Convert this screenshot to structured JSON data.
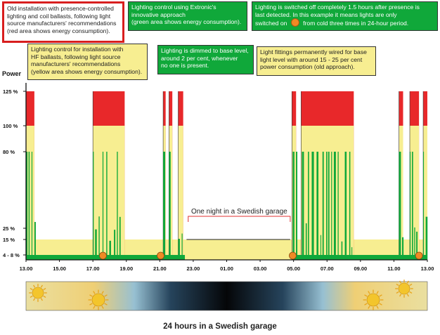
{
  "chart_data": {
    "type": "area",
    "title": "24 hours in a Swedish garage",
    "ylabel": "Power",
    "ylim": [
      0,
      140
    ],
    "x_ticks": [
      "13.00",
      "15.00",
      "17.00",
      "19.00",
      "21.00",
      "23.00",
      "01.00",
      "03.00",
      "05.00",
      "07.00",
      "09.00",
      "11.00",
      "13.00"
    ],
    "y_ticks": [
      {
        "label": "125 %",
        "value": 125
      },
      {
        "label": "100 %",
        "value": 100
      },
      {
        "label": "80 %",
        "value": 80
      },
      {
        "label": "25 %",
        "value": 25
      },
      {
        "label": "15 %",
        "value": 15
      },
      {
        "label": "4 - 8 %",
        "value": 6
      }
    ],
    "series": [
      {
        "name": "Old installation with presence-controlled lighting and coil ballasts",
        "color": "#e8282a",
        "level": 125,
        "on_periods": [
          [
            13.0,
            13.5
          ],
          [
            17.0,
            18.9
          ],
          [
            21.2,
            21.35
          ],
          [
            21.55,
            21.75
          ],
          [
            22.1,
            22.4
          ],
          [
            4.9,
            5.15
          ],
          [
            5.45,
            8.6
          ],
          [
            11.3,
            11.55
          ],
          [
            11.95,
            12.5
          ],
          [
            12.75,
            13.0
          ]
        ]
      },
      {
        "name": "Lighting control for installation with HF ballasts",
        "color": "#f7ee91",
        "base": 15,
        "level": 100,
        "on_periods": [
          [
            13.0,
            13.5
          ],
          [
            17.0,
            18.9
          ],
          [
            21.2,
            21.35
          ],
          [
            21.55,
            21.75
          ],
          [
            22.1,
            22.4
          ],
          [
            4.9,
            5.15
          ],
          [
            5.45,
            8.6
          ],
          [
            11.3,
            11.55
          ],
          [
            11.95,
            12.5
          ],
          [
            12.75,
            13.0
          ]
        ]
      },
      {
        "name": "Lighting control using Extronic's innovative approach",
        "color": "#10a83a",
        "base": 6,
        "level": 80
      }
    ],
    "markers": [
      17.6,
      21.05,
      4.95,
      12.5
    ],
    "marker_color": "#f08a24"
  },
  "annotations": {
    "red_box": [
      "Old installation with presence-controlled",
      "lighting and coil ballasts, following light",
      "source manufacturers' recommendations",
      "(red area shows energy consumption)."
    ],
    "yellow_box": [
      "Lighting control for installation with",
      "HF ballasts, following light source",
      "manufacturers' recommendations",
      "(yellow area shows energy consumption)."
    ],
    "green_extronic": [
      "Lighting control using Extronic's",
      "innovative approach",
      "(green area shows energy consumption)."
    ],
    "green_dimmed": [
      "Lighting is dimmed to base level,",
      "around 2 per cent, whenever",
      "no one is present."
    ],
    "green_switched_1": "Lighting is switched off completely 1.5 hours after presence is",
    "green_switched_2": "last detected. In this example it means lights are only",
    "green_switched_3a": "switched on",
    "green_switched_3b": "from cold three times in 24-hour period.",
    "yellow_fixed": [
      "Light fittings permanently wired for base",
      "light level with around 15 - 25 per cent",
      "power consumption (old approach)."
    ],
    "night_label": "One night in a Swedish garage"
  },
  "caption": "24 hours in a Swedish garage"
}
